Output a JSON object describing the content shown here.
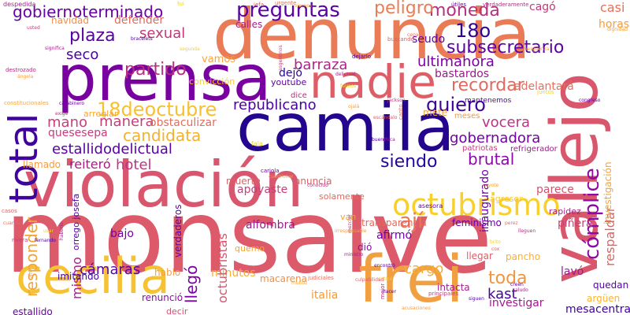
{
  "words": [
    {
      "text": "monsalve",
      "color": "#dc5a6a"
    },
    {
      "text": "denuncia",
      "color": "#ea7b57"
    },
    {
      "text": "camila",
      "color": "#24058e"
    },
    {
      "text": "violación",
      "color": "#d8566e"
    },
    {
      "text": "prensa",
      "color": "#78019f"
    },
    {
      "text": "vallejo",
      "color": "#d9576d"
    },
    {
      "text": "cecilia",
      "color": "#f6c232"
    },
    {
      "text": "frei",
      "color": "#f0a040"
    },
    {
      "text": "nadie",
      "color": "#dd5e66"
    },
    {
      "text": "total",
      "color": "#3f049c"
    },
    {
      "text": "octubrismo",
      "color": "#f9cf2b"
    },
    {
      "text": "preguntas",
      "color": "#5a03a2"
    },
    {
      "text": "plaza",
      "color": "#5b02a2"
    },
    {
      "text": "partido",
      "color": "#b6317e"
    },
    {
      "text": "recordar",
      "color": "#e3685e"
    },
    {
      "text": "quiero",
      "color": "#3d049b"
    },
    {
      "text": "gobiernoterminado",
      "color": "#6a00a8"
    },
    {
      "text": "moneda",
      "color": "#b5307f"
    },
    {
      "text": "peligro",
      "color": "#eb7c55"
    },
    {
      "text": "18o",
      "color": "#2c0593"
    },
    {
      "text": "subsecretario",
      "color": "#5a02a2"
    },
    {
      "text": "seco",
      "color": "#48039f"
    },
    {
      "text": "sexual",
      "color": "#c0397a"
    },
    {
      "text": "18deoctubre",
      "color": "#f6c030"
    },
    {
      "text": "republicano",
      "color": "#4a02a0"
    },
    {
      "text": "barraza",
      "color": "#ab2787"
    },
    {
      "text": "ultimahora",
      "color": "#7c02a7"
    },
    {
      "text": "vocera",
      "color": "#bb3581"
    },
    {
      "text": "gobernadora",
      "color": "#7201a8"
    },
    {
      "text": "candidata",
      "color": "#f3b130"
    },
    {
      "text": "manera",
      "color": "#c6407a"
    },
    {
      "text": "mano",
      "color": "#c7417a"
    },
    {
      "text": "estallidodelictual",
      "color": "#5502a1"
    },
    {
      "text": "siendo",
      "color": "#24069f"
    },
    {
      "text": "brutal",
      "color": "#8a0aa5"
    },
    {
      "text": "hotel",
      "color": "#bc3682"
    },
    {
      "text": "reiteró",
      "color": "#a51f7f"
    },
    {
      "text": "cómplice",
      "color": "#8d0aa5"
    },
    {
      "text": "responder",
      "color": "#f0a43b"
    },
    {
      "text": "ají",
      "color": "#e87556"
    },
    {
      "text": "cámaras",
      "color": "#5b03a2"
    },
    {
      "text": "cargo",
      "color": "#f3ad37"
    },
    {
      "text": "toda",
      "color": "#f0953f"
    },
    {
      "text": "kast",
      "color": "#42039d"
    },
    {
      "text": "llegó",
      "color": "#7d02a7"
    },
    {
      "text": "mismo",
      "color": "#a8228a"
    },
    {
      "text": "bastardos",
      "color": "#9c1b8b"
    },
    {
      "text": "dejó",
      "color": "#2a0593"
    },
    {
      "text": "adelantará",
      "color": "#e66f5d"
    },
    {
      "text": "investigar",
      "color": "#9e1c8c"
    },
    {
      "text": "lavó",
      "color": "#9e1c8c"
    },
    {
      "text": "parece",
      "color": "#d2536f"
    },
    {
      "text": "seudo",
      "color": "#5c02a3"
    },
    {
      "text": "casi",
      "color": "#e6705c"
    },
    {
      "text": "horas",
      "color": "#f89c3d"
    },
    {
      "text": "cagó",
      "color": "#c0397a"
    },
    {
      "text": "navidad",
      "color": "#f28f46"
    },
    {
      "text": "calles",
      "color": "#a61e89"
    },
    {
      "text": "defender",
      "color": "#e26a5e"
    },
    {
      "text": "vamos",
      "color": "#f8a43a"
    },
    {
      "text": "convicción",
      "color": "#f8c92f"
    },
    {
      "text": "obstaculizar",
      "color": "#e56e5c"
    },
    {
      "text": "quesesepa",
      "color": "#c43e7b"
    },
    {
      "text": "llamado",
      "color": "#f59b40"
    },
    {
      "text": "muerte",
      "color": "#dd6363"
    },
    {
      "text": "anuncia",
      "color": "#dd5e66"
    },
    {
      "text": "transparencia",
      "color": "#e26a5e"
    },
    {
      "text": "feminismo",
      "color": "#6a00a8"
    },
    {
      "text": "alfombra",
      "color": "#9b1a8b"
    },
    {
      "text": "bajo",
      "color": "#7501a8"
    },
    {
      "text": "afirmó",
      "color": "#7101a8"
    },
    {
      "text": "dió",
      "color": "#8b0aa5"
    },
    {
      "text": "hablo",
      "color": "#fa9e3b"
    },
    {
      "text": "minutos",
      "color": "#f6ad36"
    },
    {
      "text": "octubristas",
      "color": "#d8566d"
    },
    {
      "text": "macarena",
      "color": "#f0903f"
    },
    {
      "text": "renunció",
      "color": "#8d0ba5"
    },
    {
      "text": "decir",
      "color": "#d6516f"
    },
    {
      "text": "italia",
      "color": "#f19b3c"
    },
    {
      "text": "inaugurado",
      "color": "#6d01a8"
    },
    {
      "text": "mesacentral",
      "color": "#3e049c"
    },
    {
      "text": "quedan",
      "color": "#5102a1"
    },
    {
      "text": "argüen",
      "color": "#fdb32f"
    },
    {
      "text": "respaldar",
      "color": "#e0645f"
    },
    {
      "text": "investigación",
      "color": "#f3a338"
    },
    {
      "text": "piñera",
      "color": "#c8417a"
    },
    {
      "text": "rapidez",
      "color": "#a41f89"
    },
    {
      "text": "asesora",
      "color": "#5b02a3"
    },
    {
      "text": "youtube",
      "color": "#6200a6"
    },
    {
      "text": "dice",
      "color": "#b52e7f"
    },
    {
      "text": "mete",
      "color": "#f0a43b"
    },
    {
      "text": "meses",
      "color": "#f19a3f"
    },
    {
      "text": "mantenemos",
      "color": "#5502a1"
    },
    {
      "text": "arreglar",
      "color": "#f2a93a"
    },
    {
      "text": "fala",
      "color": "#f0d12b"
    },
    {
      "text": "apoyaste",
      "color": "#c53f7b"
    },
    {
      "text": "verdaderos",
      "color": "#5b03a2"
    },
    {
      "text": "quemo",
      "color": "#f1a43b"
    },
    {
      "text": "pancho",
      "color": "#f7ae36"
    },
    {
      "text": "llegar",
      "color": "#dd5e66"
    },
    {
      "text": "intacta",
      "color": "#a31e8a"
    },
    {
      "text": "investigar_",
      "color": "#9e1c8c"
    },
    {
      "text": "estallido",
      "color": "#6c01a8"
    },
    {
      "text": "imitando",
      "color": "#3e049c"
    },
    {
      "text": "solamente",
      "color": "#e26a5e"
    },
    {
      "text": "país",
      "color": "#7501a8"
    },
    {
      "text": "van",
      "color": "#f1a43b"
    },
    {
      "text": "agresor",
      "color": "#f7c52f"
    },
    {
      "text": "refrigerador",
      "color": "#a21d8a"
    },
    {
      "text": "patriotas",
      "color": "#c43e7b"
    },
    {
      "text": "orrego josefa",
      "color": "#5102a1"
    },
    {
      "text": "sanders",
      "color": "#d0486f"
    }
  ],
  "small_words": [
    "despedida",
    "fui",
    "jefa",
    "urgente",
    "viernes",
    "útiles",
    "verdaderamente",
    "dignidad",
    "usted",
    "bracelets",
    "significa",
    "segunda",
    "buscando",
    "cepar",
    "vergüenza",
    "congreso",
    "destrozado",
    "ángela",
    "asgentinos",
    "dejarlo",
    "delictual",
    "fuimos",
    "escándalo",
    "canto",
    "constitucionales",
    "carabinero",
    "exige",
    "ojalá",
    "jackson",
    "bueno",
    "chica",
    "juntos",
    "casos",
    "cuando",
    "cuestionar",
    "cariola",
    "conocido",
    "irresponsable",
    "mezclar",
    "encontró",
    "ministro",
    "criticó",
    "culpabilidad",
    "judiciales",
    "muñoz",
    "hacer",
    "mejor",
    "acusaciones",
    "principales",
    "siguen",
    "saludo",
    "brito",
    "cox",
    "perez",
    "coyote",
    "creen",
    "lleguen",
    "ahí",
    "rivera",
    "fernando",
    "haberlo",
    "usar"
  ]
}
